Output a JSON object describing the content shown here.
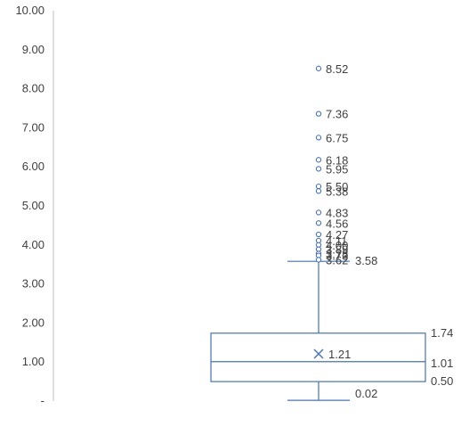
{
  "chart_data": {
    "type": "box",
    "title": "",
    "xlabel": "",
    "ylabel": "",
    "ylim": [
      0,
      10
    ],
    "y_ticks": [
      {
        "value": 10,
        "label": "10.00"
      },
      {
        "value": 9,
        "label": "9.00"
      },
      {
        "value": 8,
        "label": "8.00"
      },
      {
        "value": 7,
        "label": "7.00"
      },
      {
        "value": 6,
        "label": "6.00"
      },
      {
        "value": 5,
        "label": "5.00"
      },
      {
        "value": 4,
        "label": "4.00"
      },
      {
        "value": 3,
        "label": "3.00"
      },
      {
        "value": 2,
        "label": "2.00"
      },
      {
        "value": 1,
        "label": "1.00"
      },
      {
        "value": 0,
        "label": "-"
      }
    ],
    "box": {
      "min": 0.02,
      "q1": 0.5,
      "median": 1.01,
      "q3": 1.74,
      "upper_whisker": 3.58,
      "mean": 1.21,
      "labels": {
        "min": "0.02",
        "q1": "0.50",
        "median": "1.01",
        "q3": "1.74",
        "upper_whisker": "3.58",
        "mean": "1.21"
      }
    },
    "outliers": [
      {
        "value": 8.52,
        "label": "8.52"
      },
      {
        "value": 7.36,
        "label": "7.36"
      },
      {
        "value": 6.75,
        "label": "6.75"
      },
      {
        "value": 6.18,
        "label": "6.18"
      },
      {
        "value": 5.95,
        "label": "5.95"
      },
      {
        "value": 5.5,
        "label": "5.50"
      },
      {
        "value": 5.38,
        "label": "5.38"
      },
      {
        "value": 4.83,
        "label": "4.83"
      },
      {
        "value": 4.56,
        "label": "4.56"
      },
      {
        "value": 4.27,
        "label": "4.27"
      },
      {
        "value": 4.11,
        "label": "4.11"
      },
      {
        "value": 4.0,
        "label": "4.00"
      },
      {
        "value": 3.89,
        "label": "3.89"
      },
      {
        "value": 3.78,
        "label": "3.78"
      },
      {
        "value": 3.73,
        "label": "3.73"
      },
      {
        "value": 3.62,
        "label": "3.62"
      }
    ],
    "colors": {
      "box": "#4472c4",
      "outlier": "#4472c4",
      "axis": "#bfbfbf",
      "label": "#404040"
    },
    "grid": false,
    "legend": "none"
  }
}
